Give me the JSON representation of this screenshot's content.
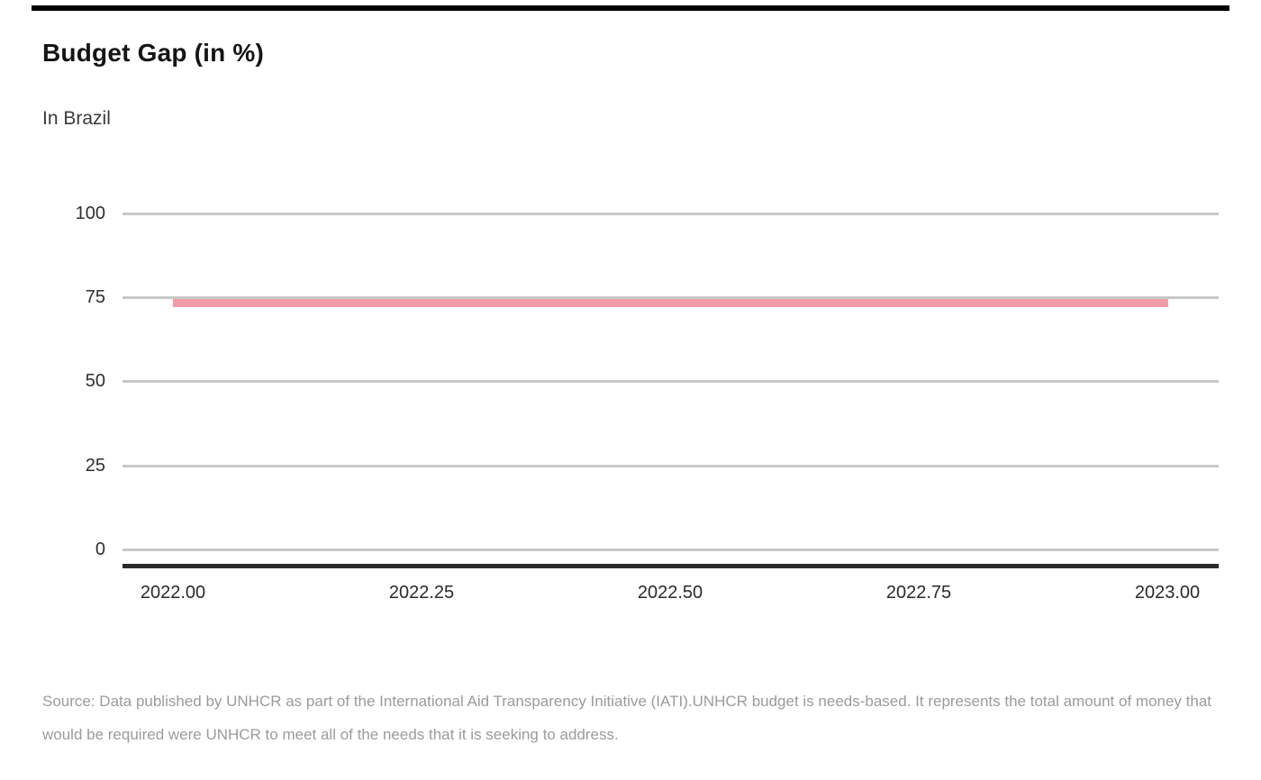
{
  "page": {
    "background": "#ffffff"
  },
  "header": {
    "title": "Budget Gap (in %)",
    "subtitle": "In Brazil"
  },
  "chart_data": {
    "type": "line",
    "title": "Budget Gap (in %)",
    "subtitle": "In Brazil",
    "x": [
      2022.0,
      2023.0
    ],
    "series": [
      {
        "name": "Budget Gap",
        "values": [
          73,
          73
        ]
      }
    ],
    "xlabel": "",
    "ylabel": "",
    "xlim": [
      2021.95,
      2023.05
    ],
    "ylim": [
      0,
      100
    ],
    "ytick_values": [
      100,
      75,
      50,
      25,
      0
    ],
    "ytick_labels": [
      "100",
      "75",
      "50",
      "25",
      "0"
    ],
    "xtick_values": [
      2022.0,
      2022.25,
      2022.5,
      2022.75,
      2023.0
    ],
    "xtick_labels": [
      "2022.00",
      "2022.25",
      "2022.50",
      "2022.75",
      "2023.00"
    ],
    "grid": "horizontal",
    "legend": "none",
    "colors": {
      "series": "#f29ba7",
      "gridline": "#c8c8c8",
      "axis_line": "#2b2b2b",
      "top_rule": "#000000"
    }
  },
  "footer": {
    "source_line1": "Source: Data published by UNHCR as part of the International Aid Transparency Initiative (IATI).UNHCR budget is needs-based. It represents the total amount of money that",
    "source_line2": "would be required were UNHCR to meet all of the needs that it is seeking to address."
  }
}
